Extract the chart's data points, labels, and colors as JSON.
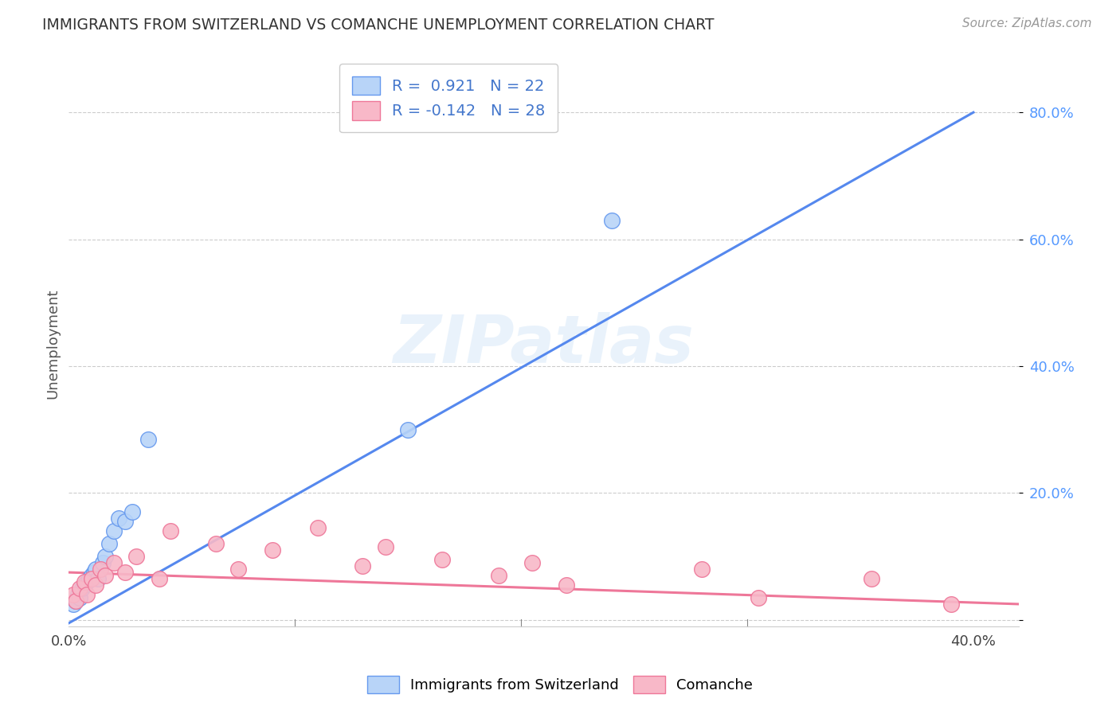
{
  "title": "IMMIGRANTS FROM SWITZERLAND VS COMANCHE UNEMPLOYMENT CORRELATION CHART",
  "source": "Source: ZipAtlas.com",
  "ylabel": "Unemployment",
  "ytick_values": [
    0.0,
    0.2,
    0.4,
    0.6,
    0.8
  ],
  "ytick_labels": [
    "",
    "20.0%",
    "40.0%",
    "60.0%",
    "80.0%"
  ],
  "xlim": [
    0.0,
    0.42
  ],
  "ylim": [
    -0.01,
    0.88
  ],
  "legend1_r": "0.921",
  "legend1_n": "22",
  "legend2_r": "-0.142",
  "legend2_n": "28",
  "blue_scatter_color": "#b8d4f8",
  "blue_scatter_edge": "#6699ee",
  "pink_scatter_color": "#f8b8c8",
  "pink_scatter_edge": "#ee7799",
  "blue_line_color": "#5588ee",
  "pink_line_color": "#ee7799",
  "watermark": "ZIPatlas",
  "series1_name": "Immigrants from Switzerland",
  "series2_name": "Comanche",
  "blue_points_x": [
    0.002,
    0.003,
    0.004,
    0.005,
    0.006,
    0.007,
    0.008,
    0.009,
    0.01,
    0.011,
    0.012,
    0.013,
    0.015,
    0.016,
    0.018,
    0.02,
    0.022,
    0.025,
    0.028,
    0.035,
    0.15,
    0.24
  ],
  "blue_points_y": [
    0.025,
    0.03,
    0.04,
    0.035,
    0.05,
    0.055,
    0.06,
    0.065,
    0.07,
    0.075,
    0.08,
    0.065,
    0.09,
    0.1,
    0.12,
    0.14,
    0.16,
    0.155,
    0.17,
    0.285,
    0.3,
    0.63
  ],
  "pink_points_x": [
    0.002,
    0.003,
    0.005,
    0.007,
    0.008,
    0.01,
    0.012,
    0.014,
    0.016,
    0.02,
    0.025,
    0.03,
    0.04,
    0.045,
    0.065,
    0.075,
    0.09,
    0.11,
    0.13,
    0.14,
    0.165,
    0.19,
    0.205,
    0.22,
    0.28,
    0.305,
    0.355,
    0.39
  ],
  "pink_points_y": [
    0.04,
    0.03,
    0.05,
    0.06,
    0.04,
    0.065,
    0.055,
    0.08,
    0.07,
    0.09,
    0.075,
    0.1,
    0.065,
    0.14,
    0.12,
    0.08,
    0.11,
    0.145,
    0.085,
    0.115,
    0.095,
    0.07,
    0.09,
    0.055,
    0.08,
    0.035,
    0.065,
    0.025
  ],
  "blue_line_x0": 0.0,
  "blue_line_y0": -0.005,
  "blue_line_x1": 0.4,
  "blue_line_y1": 0.8,
  "pink_line_x0": 0.0,
  "pink_line_y0": 0.075,
  "pink_line_x1": 0.42,
  "pink_line_y1": 0.025,
  "background_color": "#ffffff",
  "grid_color": "#cccccc"
}
